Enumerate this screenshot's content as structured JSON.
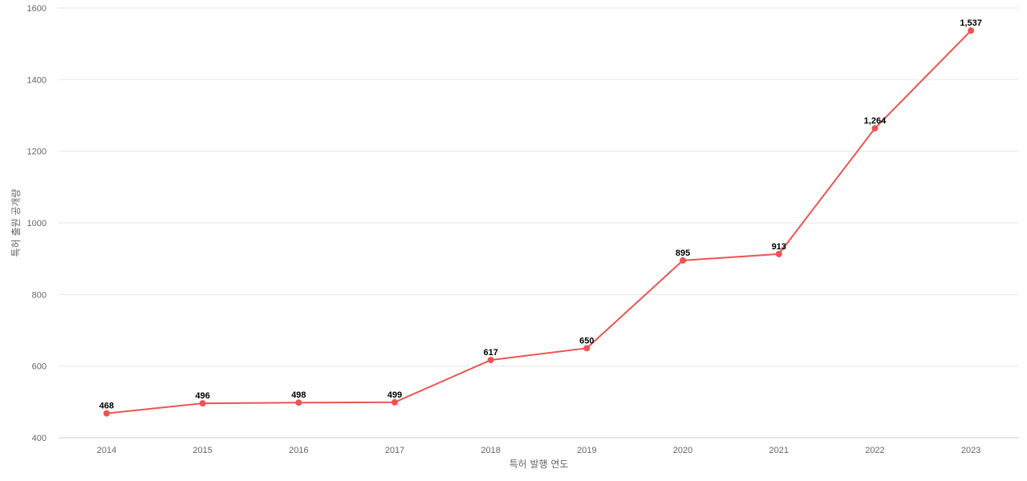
{
  "chart_data": {
    "type": "line",
    "title": "",
    "xlabel": "특허 발행 연도",
    "ylabel": "특허 출원 공개량",
    "categories": [
      "2014",
      "2015",
      "2016",
      "2017",
      "2018",
      "2019",
      "2020",
      "2021",
      "2022",
      "2023"
    ],
    "series": [
      {
        "values": [
          468,
          496,
          498,
          499,
          617,
          650,
          895,
          913,
          1264,
          1537
        ],
        "labels": [
          "468",
          "496",
          "498",
          "499",
          "617",
          "650",
          "895",
          "913",
          "1,264",
          "1,537"
        ],
        "color": "#ef5350"
      }
    ],
    "ylim": [
      400,
      1600
    ],
    "yticks": [
      400,
      600,
      800,
      1000,
      1200,
      1400,
      1600
    ],
    "grid": true,
    "legend": "none"
  }
}
